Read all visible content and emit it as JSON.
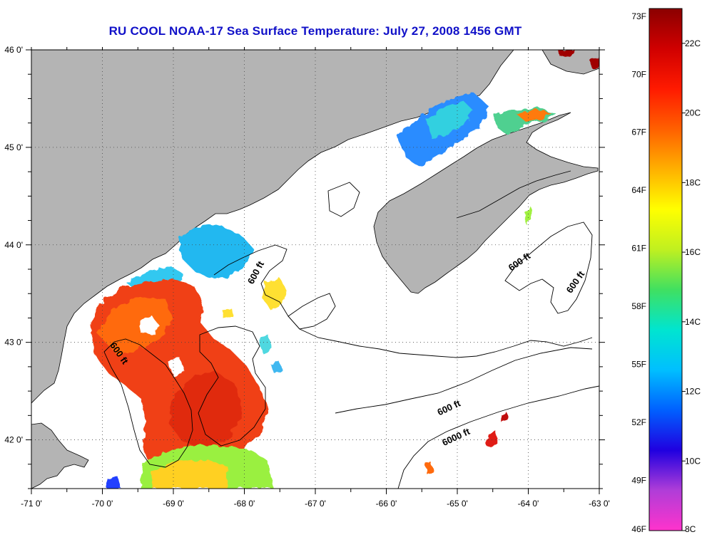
{
  "title": "RU COOL  NOAA-17  Sea Surface Temperature:  July 27, 2008 1456 GMT",
  "map": {
    "lon_range": [
      -71,
      -63
    ],
    "lat_range": [
      41.5,
      46
    ],
    "lon_labels": [
      "-71 0'",
      "-70 0'",
      "-69 0'",
      "-68 0'",
      "-67 0'",
      "-66 0'",
      "-65 0'",
      "-64 0'",
      "-63 0'"
    ],
    "lat_labels": [
      {
        "lat": 46,
        "text": "46 0'"
      },
      {
        "lat": 45,
        "text": "45 0'"
      },
      {
        "lat": 44,
        "text": "44 0'"
      },
      {
        "lat": 43,
        "text": "43 0'"
      },
      {
        "lat": 42,
        "text": "42 0'"
      }
    ],
    "land_color": "#b4b4b4",
    "ocean_color": "#ffffff",
    "isobath_labels": [
      {
        "text": "600 ft",
        "lon": -67.8,
        "lat": 43.7,
        "angle": -62
      },
      {
        "text": "600 ft",
        "lon": -69.8,
        "lat": 42.87,
        "angle": 55
      },
      {
        "text": "600 ft",
        "lon": -64.1,
        "lat": 43.8,
        "angle": -35
      },
      {
        "text": "600 ft",
        "lon": -63.3,
        "lat": 43.6,
        "angle": -55
      },
      {
        "text": "600 ft",
        "lon": -65.1,
        "lat": 42.3,
        "angle": -25
      },
      {
        "text": "6000 ft",
        "lon": -65.0,
        "lat": 42.0,
        "angle": -25
      }
    ]
  },
  "colorbar": {
    "fahrenheit": [
      "73F",
      "70F",
      "67F",
      "64F",
      "61F",
      "58F",
      "55F",
      "52F",
      "49F",
      "46F"
    ],
    "celsius": [
      "22C",
      "20C",
      "18C",
      "16C",
      "14C",
      "12C",
      "10C",
      "8C"
    ],
    "range_c": [
      8,
      23
    ],
    "gradient": [
      "#ff33cc",
      "#b03dd8",
      "#2000e0",
      "#0060ff",
      "#00bfff",
      "#00e5d0",
      "#40e060",
      "#c0f020",
      "#ffff00",
      "#ffb000",
      "#ff6000",
      "#ff1a00",
      "#d00000",
      "#8b0000"
    ]
  }
}
